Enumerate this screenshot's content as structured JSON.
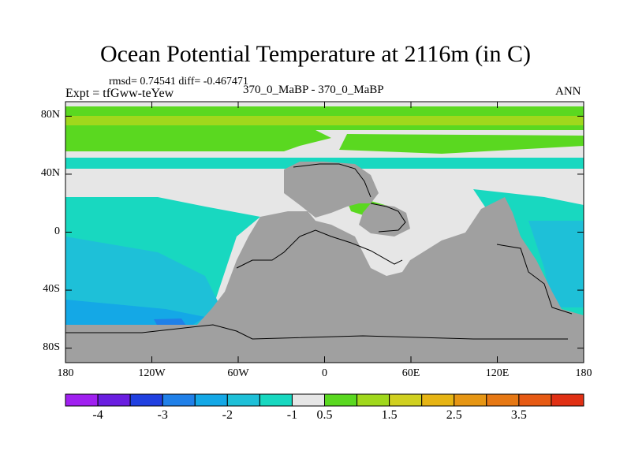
{
  "title": "Ocean Potential Temperature at 2116m (in C)",
  "stats": "rmsd= 0.74541 diff= -0.467471",
  "experiment": "Expt = tfGww-teYew",
  "comparison": "370_0_MaBP - 370_0_MaBP",
  "season": "ANN",
  "map": {
    "lat_range": [
      -90,
      90
    ],
    "lon_range": [
      -180,
      180
    ],
    "lat_ticks": [
      {
        "value": 80,
        "label": "80N"
      },
      {
        "value": 40,
        "label": "40N"
      },
      {
        "value": 0,
        "label": "0"
      },
      {
        "value": -40,
        "label": "40S"
      },
      {
        "value": -80,
        "label": "80S"
      }
    ],
    "lon_ticks": [
      {
        "value": -180,
        "label": "180"
      },
      {
        "value": -120,
        "label": "120W"
      },
      {
        "value": -60,
        "label": "60W"
      },
      {
        "value": 0,
        "label": "0"
      },
      {
        "value": 60,
        "label": "60E"
      },
      {
        "value": 120,
        "label": "120E"
      },
      {
        "value": 180,
        "label": "180"
      }
    ],
    "land_color": "#a0a0a0"
  },
  "colorbar": {
    "colors": [
      "#a020f0",
      "#6a1ee0",
      "#2040e0",
      "#2080e8",
      "#14a8e6",
      "#1ec0d8",
      "#18d8c0",
      "#e6e6e6",
      "#5ad820",
      "#a0d81c",
      "#d0d020",
      "#e6b414",
      "#e69614",
      "#e67814",
      "#e65a14",
      "#e03014"
    ],
    "labels": [
      {
        "boundary": 1,
        "text": "-4"
      },
      {
        "boundary": 3,
        "text": "-3"
      },
      {
        "boundary": 5,
        "text": "-2"
      },
      {
        "boundary": 7,
        "text": "-1"
      },
      {
        "boundary": 8,
        "text": "0.5"
      },
      {
        "boundary": 10,
        "text": "1.5"
      },
      {
        "boundary": 12,
        "text": "2.5"
      },
      {
        "boundary": 14,
        "text": "3.5"
      }
    ]
  }
}
